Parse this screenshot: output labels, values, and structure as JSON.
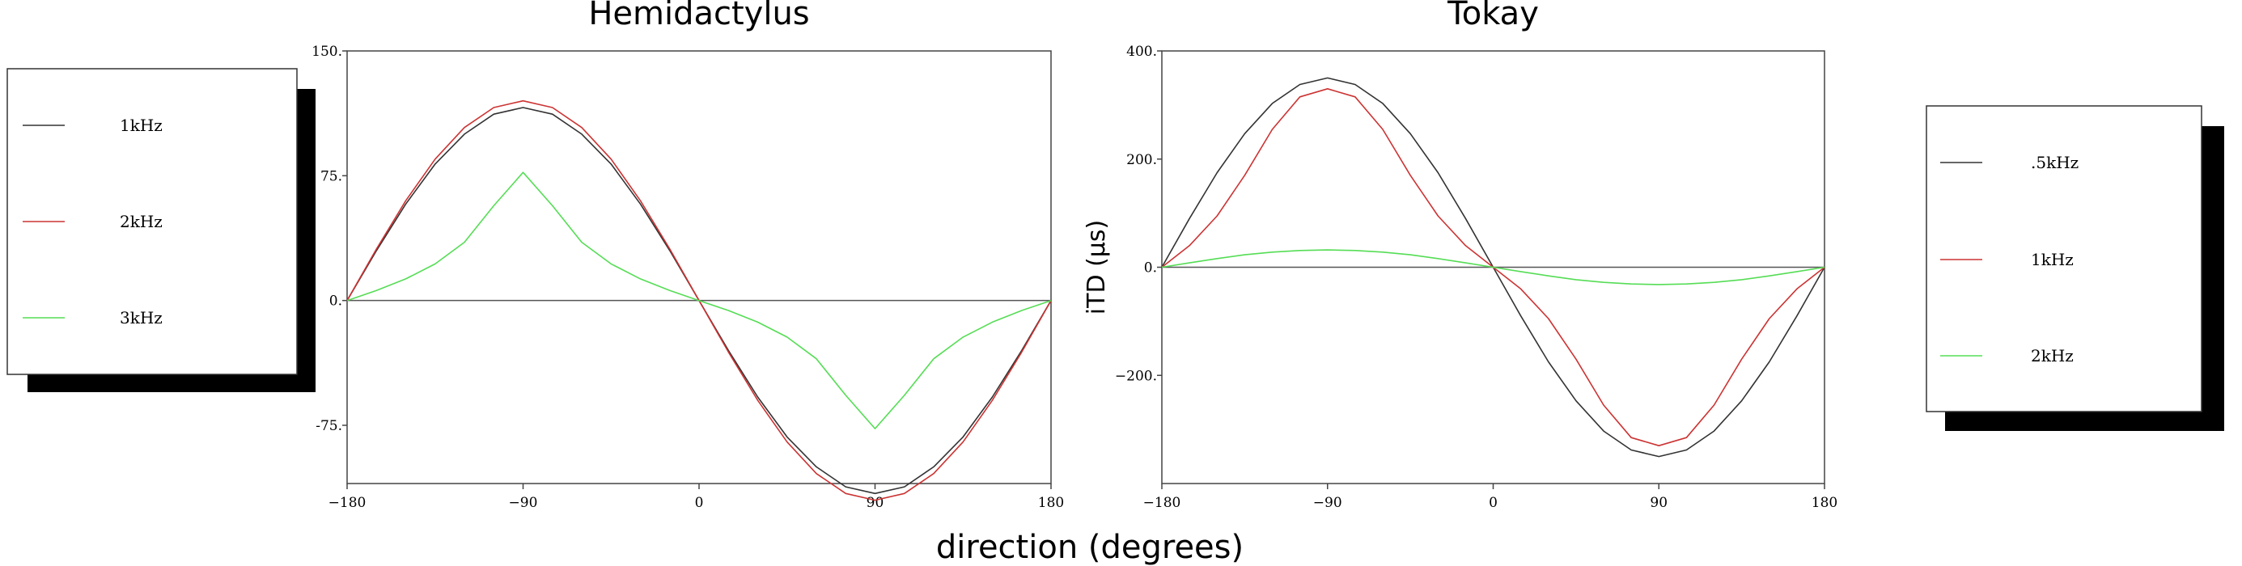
{
  "figure": {
    "xlabel": "direction (degrees)"
  },
  "chart_data": [
    {
      "type": "line",
      "title": "Hemidactylus",
      "xlabel": "direction (degrees)",
      "ylabel": "",
      "xlim": [
        -180,
        180
      ],
      "ylim": [
        -110,
        150
      ],
      "x_ticks": [
        -180,
        -90,
        0,
        90,
        180
      ],
      "x_tick_labels": [
        "−180",
        "−90",
        "0",
        "90",
        "180"
      ],
      "y_ticks": [
        150,
        75,
        0,
        -75
      ],
      "y_tick_labels": [
        "150.",
        "75.",
        "0.",
        "-75."
      ],
      "zero_line": true,
      "grid": false,
      "legend_placement": "left, outside",
      "x": [
        -180,
        -165,
        -150,
        -135,
        -120,
        -105,
        -90,
        -75,
        -60,
        -45,
        -30,
        -15,
        0,
        15,
        30,
        45,
        60,
        75,
        90,
        105,
        120,
        135,
        150,
        165,
        180
      ],
      "series": [
        {
          "name": "1kHz",
          "color": "#333333",
          "values": [
            0,
            30,
            58,
            82,
            100,
            112,
            116,
            112,
            100,
            82,
            58,
            30,
            0,
            -30,
            -58,
            -82,
            -100,
            -112,
            -116,
            -112,
            -100,
            -82,
            -58,
            -30,
            0
          ]
        },
        {
          "name": "2kHz",
          "color": "#cc3333",
          "values": [
            0,
            31,
            60,
            85,
            104,
            116,
            120,
            116,
            104,
            85,
            60,
            31,
            0,
            -31,
            -60,
            -85,
            -104,
            -116,
            -120,
            -116,
            -104,
            -85,
            -60,
            -31,
            0
          ]
        },
        {
          "name": "3kHz",
          "color": "#55dd55",
          "values": [
            0,
            6,
            13,
            22,
            35,
            57,
            77,
            57,
            35,
            22,
            13,
            6,
            0,
            -6,
            -13,
            -22,
            -35,
            -57,
            -77,
            -57,
            -35,
            -22,
            -13,
            -6,
            0
          ]
        }
      ]
    },
    {
      "type": "line",
      "title": "Tokay",
      "xlabel": "direction (degrees)",
      "ylabel": "iTD (μs)",
      "xlim": [
        -180,
        180
      ],
      "ylim": [
        -400,
        400
      ],
      "x_ticks": [
        -180,
        -90,
        0,
        90,
        180
      ],
      "x_tick_labels": [
        "−180",
        "−90",
        "0",
        "90",
        "180"
      ],
      "y_ticks": [
        400,
        200,
        0,
        -200
      ],
      "y_tick_labels": [
        "400.",
        "200.",
        "0.",
        "−200."
      ],
      "zero_line": true,
      "grid": false,
      "legend_placement": "right, outside",
      "x": [
        -180,
        -165,
        -150,
        -135,
        -120,
        -105,
        -90,
        -75,
        -60,
        -45,
        -30,
        -15,
        0,
        15,
        30,
        45,
        60,
        75,
        90,
        105,
        120,
        135,
        150,
        165,
        180
      ],
      "series": [
        {
          "name": ".5kHz",
          "color": "#333333",
          "values": [
            0,
            90,
            175,
            247,
            303,
            338,
            350,
            338,
            303,
            247,
            175,
            90,
            0,
            -90,
            -175,
            -247,
            -303,
            -338,
            -350,
            -338,
            -303,
            -247,
            -175,
            -90,
            0
          ]
        },
        {
          "name": "1kHz",
          "color": "#cc3333",
          "values": [
            0,
            40,
            95,
            170,
            255,
            315,
            330,
            315,
            255,
            170,
            95,
            40,
            0,
            -40,
            -95,
            -170,
            -255,
            -315,
            -330,
            -315,
            -255,
            -170,
            -95,
            -40,
            0
          ]
        },
        {
          "name": "2kHz",
          "color": "#55dd55",
          "values": [
            0,
            8,
            16,
            23,
            28,
            31,
            32,
            31,
            28,
            23,
            16,
            8,
            0,
            -8,
            -16,
            -23,
            -28,
            -31,
            -32,
            -31,
            -28,
            -23,
            -16,
            -8,
            0
          ]
        }
      ]
    }
  ]
}
